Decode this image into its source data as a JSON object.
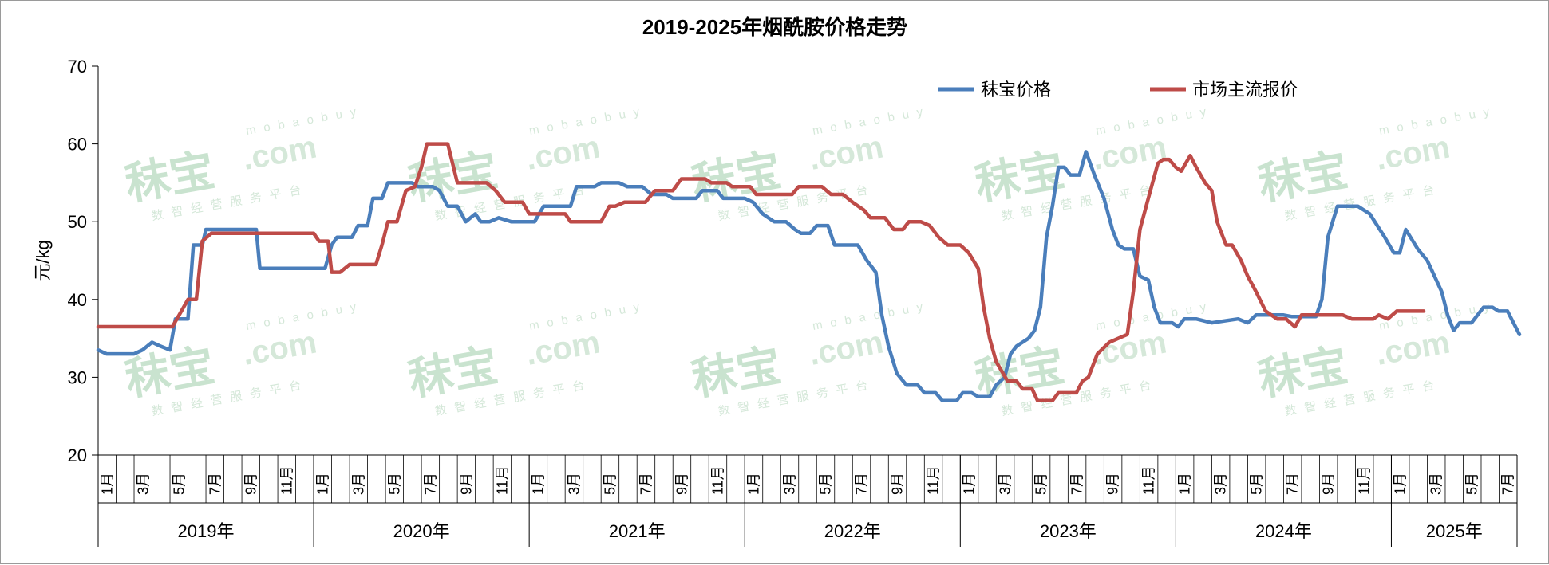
{
  "title": "2019-2025年烟酰胺价格走势",
  "watermark": {
    "brand": "秣宝",
    "domain_top": "mobaobuy",
    "domain": ".com",
    "tagline": "数智经营服务平台"
  },
  "chart_data": {
    "type": "line",
    "title": "2019-2025年烟酰胺价格走势",
    "ylabel": "元/kg",
    "ylim": [
      20,
      70
    ],
    "yticks": [
      20,
      30,
      40,
      50,
      60,
      70
    ],
    "xlabel": "",
    "x_start": "2019-01",
    "x_end": "2025-07",
    "month_tick_labels": [
      "1月",
      "3月",
      "5月",
      "7月",
      "9月",
      "11月"
    ],
    "year_labels": [
      "2019年",
      "2020年",
      "2021年",
      "2022年",
      "2023年",
      "2024年",
      "2025年"
    ],
    "legend_position": "top-right",
    "grid": false,
    "series": [
      {
        "name": "秣宝价格",
        "color": "#4a7ebb",
        "points": [
          [
            "2019-01-01",
            33.5
          ],
          [
            "2019-01-15",
            33
          ],
          [
            "2019-02-15",
            33
          ],
          [
            "2019-03-01",
            33
          ],
          [
            "2019-03-15",
            33.5
          ],
          [
            "2019-04-01",
            34.5
          ],
          [
            "2019-04-15",
            34
          ],
          [
            "2019-05-01",
            33.5
          ],
          [
            "2019-05-10",
            37.5
          ],
          [
            "2019-06-01",
            37.5
          ],
          [
            "2019-06-10",
            47
          ],
          [
            "2019-06-25",
            47
          ],
          [
            "2019-07-01",
            49
          ],
          [
            "2019-09-25",
            49
          ],
          [
            "2019-10-01",
            44
          ],
          [
            "2020-01-20",
            44
          ],
          [
            "2020-02-01",
            47
          ],
          [
            "2020-02-10",
            48
          ],
          [
            "2020-03-05",
            48
          ],
          [
            "2020-03-15",
            49.5
          ],
          [
            "2020-04-01",
            49.5
          ],
          [
            "2020-04-10",
            53
          ],
          [
            "2020-04-25",
            53
          ],
          [
            "2020-05-05",
            55
          ],
          [
            "2020-06-15",
            55
          ],
          [
            "2020-06-25",
            54.5
          ],
          [
            "2020-07-20",
            54.5
          ],
          [
            "2020-08-01",
            54
          ],
          [
            "2020-08-15",
            52
          ],
          [
            "2020-09-01",
            52
          ],
          [
            "2020-09-15",
            50
          ],
          [
            "2020-10-01",
            51
          ],
          [
            "2020-10-10",
            50
          ],
          [
            "2020-10-25",
            50
          ],
          [
            "2020-11-10",
            50.5
          ],
          [
            "2020-12-01",
            50
          ],
          [
            "2021-01-10",
            50
          ],
          [
            "2021-01-25",
            52
          ],
          [
            "2021-03-10",
            52
          ],
          [
            "2021-03-20",
            54.5
          ],
          [
            "2021-04-20",
            54.5
          ],
          [
            "2021-05-01",
            55
          ],
          [
            "2021-06-01",
            55
          ],
          [
            "2021-06-15",
            54.5
          ],
          [
            "2021-07-10",
            54.5
          ],
          [
            "2021-07-25",
            53.5
          ],
          [
            "2021-08-20",
            53.5
          ],
          [
            "2021-09-01",
            53
          ],
          [
            "2021-10-10",
            53
          ],
          [
            "2021-10-20",
            54
          ],
          [
            "2021-11-15",
            54
          ],
          [
            "2021-11-25",
            53
          ],
          [
            "2022-01-01",
            53
          ],
          [
            "2022-01-15",
            52.5
          ],
          [
            "2022-02-01",
            51
          ],
          [
            "2022-02-20",
            50
          ],
          [
            "2022-03-10",
            50
          ],
          [
            "2022-03-25",
            49
          ],
          [
            "2022-04-05",
            48.5
          ],
          [
            "2022-04-20",
            48.5
          ],
          [
            "2022-05-01",
            49.5
          ],
          [
            "2022-05-20",
            49.5
          ],
          [
            "2022-06-01",
            47
          ],
          [
            "2022-06-25",
            47
          ],
          [
            "2022-07-10",
            47
          ],
          [
            "2022-07-25",
            45
          ],
          [
            "2022-08-10",
            43.5
          ],
          [
            "2022-08-20",
            38
          ],
          [
            "2022-09-01",
            34
          ],
          [
            "2022-09-15",
            30.5
          ],
          [
            "2022-10-01",
            29
          ],
          [
            "2022-10-20",
            29
          ],
          [
            "2022-11-01",
            28
          ],
          [
            "2022-11-20",
            28
          ],
          [
            "2022-12-01",
            27
          ],
          [
            "2022-12-25",
            27
          ],
          [
            "2023-01-05",
            28
          ],
          [
            "2023-01-20",
            28
          ],
          [
            "2023-02-01",
            27.5
          ],
          [
            "2023-02-20",
            27.5
          ],
          [
            "2023-03-01",
            29
          ],
          [
            "2023-03-15",
            30
          ],
          [
            "2023-03-25",
            33
          ],
          [
            "2023-04-05",
            34
          ],
          [
            "2023-04-25",
            35
          ],
          [
            "2023-05-05",
            36
          ],
          [
            "2023-05-15",
            39
          ],
          [
            "2023-05-25",
            48
          ],
          [
            "2023-06-05",
            52
          ],
          [
            "2023-06-15",
            57
          ],
          [
            "2023-06-25",
            57
          ],
          [
            "2023-07-05",
            56
          ],
          [
            "2023-07-20",
            56
          ],
          [
            "2023-08-01",
            59
          ],
          [
            "2023-08-15",
            56
          ],
          [
            "2023-09-01",
            53
          ],
          [
            "2023-09-15",
            49
          ],
          [
            "2023-09-25",
            47
          ],
          [
            "2023-10-05",
            46.5
          ],
          [
            "2023-10-20",
            46.5
          ],
          [
            "2023-11-01",
            43
          ],
          [
            "2023-11-15",
            42.5
          ],
          [
            "2023-11-25",
            39
          ],
          [
            "2023-12-05",
            37
          ],
          [
            "2023-12-25",
            37
          ],
          [
            "2024-01-05",
            36.5
          ],
          [
            "2024-01-15",
            37.5
          ],
          [
            "2024-02-05",
            37.5
          ],
          [
            "2024-03-01",
            37
          ],
          [
            "2024-04-15",
            37.5
          ],
          [
            "2024-05-01",
            37
          ],
          [
            "2024-05-15",
            38
          ],
          [
            "2024-06-01",
            38
          ],
          [
            "2024-07-01",
            38
          ],
          [
            "2024-07-15",
            37.8
          ],
          [
            "2024-08-25",
            37.8
          ],
          [
            "2024-09-05",
            40
          ],
          [
            "2024-09-15",
            48
          ],
          [
            "2024-10-01",
            52
          ],
          [
            "2024-11-05",
            52
          ],
          [
            "2024-11-25",
            51
          ],
          [
            "2024-12-20",
            48
          ],
          [
            "2025-01-05",
            46
          ],
          [
            "2025-01-15",
            46
          ],
          [
            "2025-01-25",
            49
          ],
          [
            "2025-02-15",
            46.5
          ],
          [
            "2025-03-01",
            45
          ],
          [
            "2025-03-25",
            41
          ],
          [
            "2025-04-05",
            38
          ],
          [
            "2025-04-15",
            36
          ],
          [
            "2025-04-25",
            37
          ],
          [
            "2025-05-15",
            37
          ],
          [
            "2025-05-25",
            38
          ],
          [
            "2025-06-05",
            39
          ],
          [
            "2025-06-20",
            39
          ],
          [
            "2025-06-30",
            38.5
          ],
          [
            "2025-07-15",
            38.5
          ],
          [
            "2025-07-25",
            37
          ],
          [
            "2025-08-05",
            35.5
          ]
        ]
      },
      {
        "name": "市场主流报价",
        "color": "#be4b48",
        "points": [
          [
            "2019-01-01",
            36.5
          ],
          [
            "2019-05-05",
            36.5
          ],
          [
            "2019-05-20",
            38.5
          ],
          [
            "2019-06-01",
            40
          ],
          [
            "2019-06-15",
            40
          ],
          [
            "2019-06-25",
            47.5
          ],
          [
            "2019-07-10",
            48.5
          ],
          [
            "2019-10-01",
            48.5
          ],
          [
            "2020-01-01",
            48.5
          ],
          [
            "2020-01-10",
            47.5
          ],
          [
            "2020-01-25",
            47.5
          ],
          [
            "2020-02-01",
            43.5
          ],
          [
            "2020-02-15",
            43.5
          ],
          [
            "2020-03-01",
            44.5
          ],
          [
            "2020-04-15",
            44.5
          ],
          [
            "2020-04-25",
            47
          ],
          [
            "2020-05-05",
            50
          ],
          [
            "2020-05-20",
            50
          ],
          [
            "2020-06-05",
            54
          ],
          [
            "2020-06-20",
            54.5
          ],
          [
            "2020-07-01",
            57
          ],
          [
            "2020-07-10",
            60
          ],
          [
            "2020-08-15",
            60
          ],
          [
            "2020-09-01",
            55
          ],
          [
            "2020-10-20",
            55
          ],
          [
            "2020-11-05",
            54
          ],
          [
            "2020-11-20",
            52.5
          ],
          [
            "2020-12-20",
            52.5
          ],
          [
            "2021-01-01",
            51
          ],
          [
            "2021-02-15",
            51
          ],
          [
            "2021-03-01",
            51
          ],
          [
            "2021-03-10",
            50
          ],
          [
            "2021-05-01",
            50
          ],
          [
            "2021-05-15",
            52
          ],
          [
            "2021-05-25",
            52
          ],
          [
            "2021-06-10",
            52.5
          ],
          [
            "2021-07-15",
            52.5
          ],
          [
            "2021-08-01",
            54
          ],
          [
            "2021-09-01",
            54
          ],
          [
            "2021-09-15",
            55.5
          ],
          [
            "2021-10-25",
            55.5
          ],
          [
            "2021-11-05",
            55
          ],
          [
            "2021-12-01",
            55
          ],
          [
            "2021-12-10",
            54.5
          ],
          [
            "2022-01-10",
            54.5
          ],
          [
            "2022-01-20",
            53.5
          ],
          [
            "2022-03-20",
            53.5
          ],
          [
            "2022-04-01",
            54.5
          ],
          [
            "2022-05-10",
            54.5
          ],
          [
            "2022-05-25",
            53.5
          ],
          [
            "2022-06-15",
            53.5
          ],
          [
            "2022-07-01",
            52.5
          ],
          [
            "2022-07-20",
            51.5
          ],
          [
            "2022-08-01",
            50.5
          ],
          [
            "2022-08-25",
            50.5
          ],
          [
            "2022-09-10",
            49
          ],
          [
            "2022-09-25",
            49
          ],
          [
            "2022-10-05",
            50
          ],
          [
            "2022-10-25",
            50
          ],
          [
            "2022-11-10",
            49.5
          ],
          [
            "2022-11-25",
            48
          ],
          [
            "2022-12-10",
            47
          ],
          [
            "2023-01-01",
            47
          ],
          [
            "2023-01-15",
            46
          ],
          [
            "2023-02-01",
            44
          ],
          [
            "2023-02-10",
            39
          ],
          [
            "2023-02-20",
            35
          ],
          [
            "2023-03-01",
            32
          ],
          [
            "2023-03-20",
            29.5
          ],
          [
            "2023-04-05",
            29.5
          ],
          [
            "2023-04-15",
            28.5
          ],
          [
            "2023-05-01",
            28.5
          ],
          [
            "2023-05-10",
            27
          ],
          [
            "2023-06-05",
            27
          ],
          [
            "2023-06-15",
            28
          ],
          [
            "2023-07-15",
            28
          ],
          [
            "2023-07-25",
            29.5
          ],
          [
            "2023-08-05",
            30
          ],
          [
            "2023-08-20",
            33
          ],
          [
            "2023-09-10",
            34.5
          ],
          [
            "2023-09-25",
            35
          ],
          [
            "2023-10-10",
            35.5
          ],
          [
            "2023-10-20",
            41
          ],
          [
            "2023-11-01",
            49
          ],
          [
            "2023-11-15",
            53
          ],
          [
            "2023-12-01",
            57.5
          ],
          [
            "2023-12-10",
            58
          ],
          [
            "2023-12-20",
            58
          ],
          [
            "2024-01-01",
            57
          ],
          [
            "2024-01-10",
            56.5
          ],
          [
            "2024-01-25",
            58.5
          ],
          [
            "2024-02-05",
            57
          ],
          [
            "2024-02-20",
            55
          ],
          [
            "2024-03-01",
            54
          ],
          [
            "2024-03-10",
            50
          ],
          [
            "2024-03-25",
            47
          ],
          [
            "2024-04-05",
            47
          ],
          [
            "2024-04-20",
            45
          ],
          [
            "2024-05-01",
            43
          ],
          [
            "2024-05-15",
            41
          ],
          [
            "2024-06-01",
            38.5
          ],
          [
            "2024-06-20",
            37.5
          ],
          [
            "2024-07-05",
            37.5
          ],
          [
            "2024-07-20",
            36.5
          ],
          [
            "2024-08-01",
            38
          ],
          [
            "2024-09-01",
            38
          ],
          [
            "2024-10-10",
            38
          ],
          [
            "2024-10-25",
            37.5
          ],
          [
            "2024-12-01",
            37.5
          ],
          [
            "2024-12-10",
            38
          ],
          [
            "2024-12-25",
            37.5
          ],
          [
            "2025-01-10",
            38.5
          ],
          [
            "2025-02-25",
            38.5
          ]
        ]
      }
    ]
  }
}
